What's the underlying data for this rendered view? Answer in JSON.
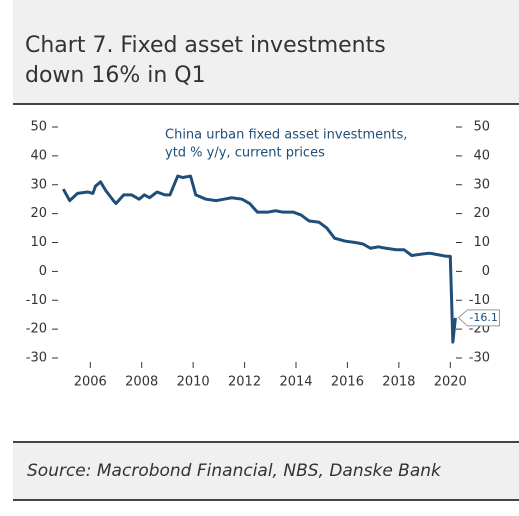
{
  "chart_data": {
    "type": "line",
    "title": [
      "Chart 7. Fixed asset investments",
      "down 16% in Q1"
    ],
    "annotation": [
      "China urban fixed asset investments,",
      "ytd % y/y, current prices"
    ],
    "source": "Source: Macrobond Financial, NBS, Danske Bank",
    "series": [
      {
        "name": "China urban fixed asset investments",
        "color": "#1f4e79",
        "x": [
          2004.95,
          2005.2,
          2005.5,
          2005.9,
          2006.1,
          2006.2,
          2006.4,
          2006.6,
          2006.9,
          2007.0,
          2007.3,
          2007.6,
          2007.9,
          2008.1,
          2008.3,
          2008.6,
          2008.9,
          2009.1,
          2009.4,
          2009.6,
          2009.9,
          2010.1,
          2010.5,
          2010.9,
          2011.2,
          2011.5,
          2011.9,
          2012.2,
          2012.5,
          2012.9,
          2013.2,
          2013.5,
          2013.9,
          2014.2,
          2014.5,
          2014.9,
          2015.2,
          2015.5,
          2015.9,
          2016.3,
          2016.6,
          2016.9,
          2017.2,
          2017.5,
          2017.9,
          2018.2,
          2018.5,
          2018.9,
          2019.2,
          2019.5,
          2019.8,
          2020.0,
          2020.1,
          2020.2
        ],
        "values": [
          28.5,
          24.5,
          27,
          27.5,
          27,
          29.5,
          31,
          28,
          24.5,
          23.5,
          26.5,
          26.5,
          25,
          26.5,
          25.5,
          27.5,
          26.5,
          26.5,
          33,
          32.5,
          33,
          26.5,
          25,
          24.5,
          25,
          25.5,
          25,
          23.5,
          20.5,
          20.5,
          21,
          20.5,
          20.5,
          19.5,
          17.5,
          17,
          15,
          11.5,
          10.5,
          10,
          9.5,
          8,
          8.5,
          8,
          7.5,
          7.5,
          5.5,
          6,
          6.3,
          5.8,
          5.3,
          5.2,
          -24.5,
          -16.1
        ]
      }
    ],
    "xlim": [
      2004.9,
      2020.3
    ],
    "xticks": [
      2006,
      2008,
      2010,
      2012,
      2014,
      2016,
      2018,
      2020
    ],
    "ylim": [
      -30,
      50
    ],
    "yticks": [
      -30,
      -20,
      -10,
      0,
      10,
      20,
      30,
      40,
      50
    ],
    "y2lim": [
      -30,
      50
    ],
    "y2ticks": [
      -30,
      -20,
      -10,
      0,
      10,
      20,
      30,
      40,
      50
    ],
    "grid": false
  }
}
